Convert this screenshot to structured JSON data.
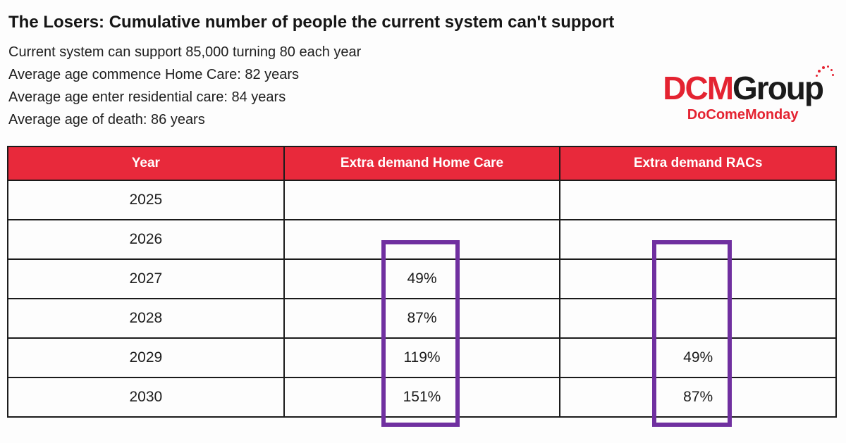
{
  "header": {
    "title": "The Losers: Cumulative number of people the current system can't support",
    "subtitles": [
      "Current system can support 85,000 turning 80 each year",
      "Average age commence Home Care: 82 years",
      "Average age enter residential care: 84 years",
      "Average age of death: 86 years"
    ]
  },
  "logo": {
    "part1": "DCM",
    "part2": "Group",
    "tagline": "DoComeMonday"
  },
  "table": {
    "columns": [
      "Year",
      "Extra demand Home Care",
      "Extra demand RACs"
    ],
    "rows": [
      {
        "year": "2025",
        "home_care": "",
        "racs": ""
      },
      {
        "year": "2026",
        "home_care": "",
        "racs": ""
      },
      {
        "year": "2027",
        "home_care": "49%",
        "racs": ""
      },
      {
        "year": "2028",
        "home_care": "87%",
        "racs": ""
      },
      {
        "year": "2029",
        "home_care": "119%",
        "racs": "49%"
      },
      {
        "year": "2030",
        "home_care": "151%",
        "racs": "87%"
      }
    ]
  },
  "chart_data": {
    "type": "table",
    "title": "The Losers: Cumulative number of people the current system can't support",
    "notes": [
      "Current system can support 85,000 turning 80 each year",
      "Average age commence Home Care: 82 years",
      "Average age enter residential care: 84 years",
      "Average age of death: 86 years"
    ],
    "columns": [
      "Year",
      "Extra demand Home Care",
      "Extra demand RACs"
    ],
    "rows": [
      [
        "2025",
        "",
        ""
      ],
      [
        "2026",
        "",
        ""
      ],
      [
        "2027",
        "49%",
        ""
      ],
      [
        "2028",
        "87%",
        ""
      ],
      [
        "2029",
        "119%",
        "49%"
      ],
      [
        "2030",
        "151%",
        "87%"
      ]
    ],
    "highlighted_columns": [
      "Extra demand Home Care",
      "Extra demand RACs"
    ],
    "legend_position": "none",
    "grid": true
  },
  "colors": {
    "accent-red": "#e8293b",
    "logo-red": "#e42331",
    "highlight-purple": "#7030a0",
    "border-dark": "#1b1b1b",
    "text-dark": "#1c1c1c"
  }
}
